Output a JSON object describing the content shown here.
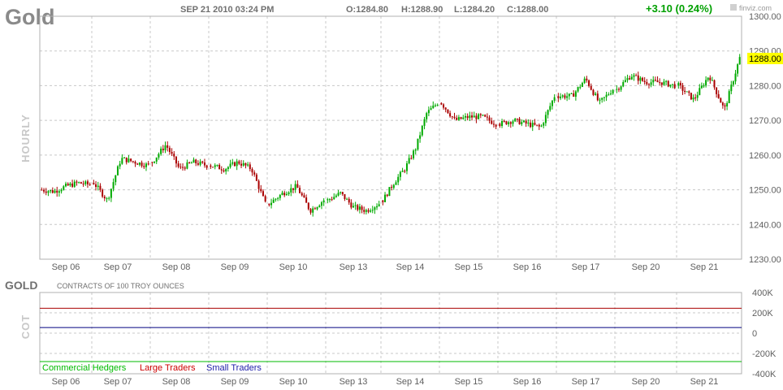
{
  "header": {
    "symbol": "Gold",
    "datetime": "SEP 21 2010 03:24 PM",
    "open": "O:1284.80",
    "high": "H:1288.90",
    "low": "L:1284.20",
    "close": "C:1288.00",
    "change": "+3.10 (0.24%)",
    "brand": "finviz.com",
    "period": "HOURLY"
  },
  "colors": {
    "up": "#00aa00",
    "down": "#aa0000",
    "grid": "#c8c8c8",
    "change": "#00a000",
    "last_price_bg": "#ffff00"
  },
  "chart_data": [
    {
      "type": "candlestick",
      "title": "Gold",
      "ylabel": "HOURLY",
      "ylim": [
        1230,
        1300
      ],
      "y_ticks": [
        "1300.00",
        "1290.00",
        "1280.00",
        "1270.00",
        "1260.00",
        "1250.00",
        "1240.00",
        "1230.00"
      ],
      "x_ticks": [
        "Sep 06",
        "Sep 07",
        "Sep 08",
        "Sep 09",
        "Sep 10",
        "Sep 13",
        "Sep 14",
        "Sep 15",
        "Sep 16",
        "Sep 17",
        "Sep 20",
        "Sep 21"
      ],
      "last_price": "1288.00",
      "series": [
        {
          "label": "Sep 06",
          "anchors": [
            1250,
            1249.5,
            1251,
            1252,
            1251.5
          ]
        },
        {
          "label": "Sep 07",
          "anchors": [
            1252,
            1247,
            1259,
            1258,
            1257
          ]
        },
        {
          "label": "Sep 08",
          "anchors": [
            1258,
            1263,
            1256,
            1258,
            1257
          ]
        },
        {
          "label": "Sep 09",
          "anchors": [
            1257,
            1256,
            1258,
            1256,
            1246
          ]
        },
        {
          "label": "Sep 10",
          "anchors": [
            1246,
            1249,
            1251,
            1244,
            1247
          ]
        },
        {
          "label": "Sep 13",
          "anchors": [
            1247,
            1249,
            1245,
            1244,
            1246
          ]
        },
        {
          "label": "Sep 14",
          "anchors": [
            1247,
            1252,
            1256,
            1262,
            1272,
            1275
          ]
        },
        {
          "label": "Sep 15",
          "anchors": [
            1275,
            1270,
            1271,
            1271,
            1269
          ]
        },
        {
          "label": "Sep 16",
          "anchors": [
            1269,
            1270,
            1269,
            1268,
            1277
          ]
        },
        {
          "label": "Sep 17",
          "anchors": [
            1277,
            1277,
            1282,
            1275,
            1279
          ]
        },
        {
          "label": "Sep 20",
          "anchors": [
            1279,
            1283,
            1281,
            1281,
            1280
          ]
        },
        {
          "label": "Sep 21",
          "anchors": [
            1280,
            1276,
            1283,
            1273,
            1288
          ]
        }
      ]
    },
    {
      "type": "line",
      "title": "GOLD",
      "subtitle": "CONTRACTS OF 100 TROY OUNCES",
      "ylabel": "COT",
      "ylim": [
        -400000,
        400000
      ],
      "y_ticks": [
        "400K",
        "200K",
        "0",
        "-200K",
        "-400K"
      ],
      "x_ticks": [
        "Sep 06",
        "Sep 07",
        "Sep 08",
        "Sep 09",
        "Sep 10",
        "Sep 13",
        "Sep 14",
        "Sep 15",
        "Sep 16",
        "Sep 17",
        "Sep 20",
        "Sep 21"
      ],
      "series": [
        {
          "name": "Commercial Hedgers",
          "color": "#00bb00",
          "values": [
            -280000,
            -280000
          ]
        },
        {
          "name": "Large Traders",
          "color": "#aa0000",
          "values": [
            245000,
            245000
          ]
        },
        {
          "name": "Small Traders",
          "color": "#000080",
          "values": [
            55000,
            55000
          ]
        }
      ]
    }
  ]
}
